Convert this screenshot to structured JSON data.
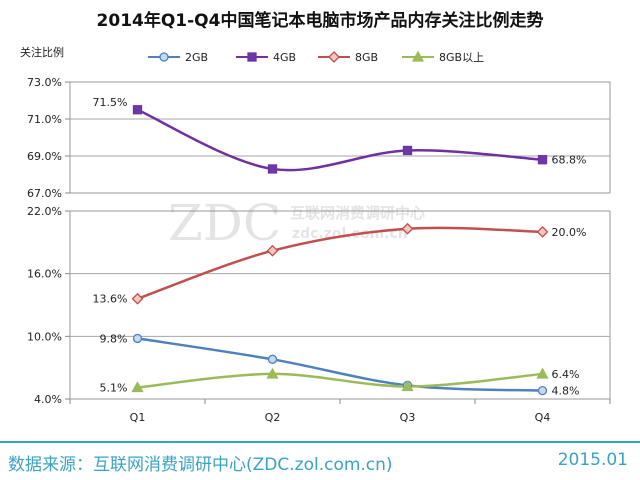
{
  "chart_data": {
    "type": "line",
    "title": "2014年Q1-Q4中国笔记本电脑市场产品内存关注比例走势",
    "ylabel": "关注比例",
    "xlabel": "",
    "categories": [
      "Q1",
      "Q2",
      "Q3",
      "Q4"
    ],
    "legend_position": "top",
    "grid": true,
    "panels": [
      {
        "ylim": [
          67.0,
          73.0
        ],
        "yticks": [
          "73.0%",
          "71.0%",
          "69.0%",
          "67.0%"
        ],
        "tick_values": [
          73.0,
          71.0,
          69.0,
          67.0
        ],
        "series": [
          "4GB"
        ]
      },
      {
        "ylim": [
          4.0,
          22.0
        ],
        "yticks": [
          "22.0%",
          "16.0%",
          "10.0%",
          "4.0%"
        ],
        "tick_values": [
          22.0,
          16.0,
          10.0,
          4.0
        ],
        "series": [
          "2GB",
          "8GB",
          "8GB以上"
        ]
      }
    ],
    "series": [
      {
        "name": "2GB",
        "values": [
          9.8,
          7.8,
          5.3,
          4.8
        ],
        "labels": [
          "9.8%",
          "",
          "",
          "4.8%"
        ],
        "color": "#4f81bd",
        "marker": "circle",
        "marker_fill": "#c5d9f1"
      },
      {
        "name": "4GB",
        "values": [
          71.5,
          68.3,
          69.3,
          68.8
        ],
        "labels": [
          "71.5%",
          "",
          "",
          "68.8%"
        ],
        "color": "#7030a0",
        "marker": "square",
        "marker_fill": "#6a3aa8"
      },
      {
        "name": "8GB",
        "values": [
          13.6,
          18.2,
          20.3,
          20.0
        ],
        "labels": [
          "13.6%",
          "",
          "",
          "20.0%"
        ],
        "color": "#c0504d",
        "marker": "diamond",
        "marker_fill": "#f4c7c3"
      },
      {
        "name": "8GB以上",
        "values": [
          5.1,
          6.4,
          5.2,
          6.4
        ],
        "labels": [
          "5.1%",
          "",
          "",
          "6.4%"
        ],
        "color": "#9bbb59",
        "marker": "triangle",
        "marker_fill": "#9bbb59"
      }
    ]
  },
  "watermark": {
    "brand": "ZDC",
    "text_cn": "互联网消费调研中心",
    "text_url": "zdc.zol.com.cn"
  },
  "footer": {
    "source": "数据来源：互联网消费调研中心(ZDC.zol.com.cn)",
    "date": "2015.01"
  }
}
